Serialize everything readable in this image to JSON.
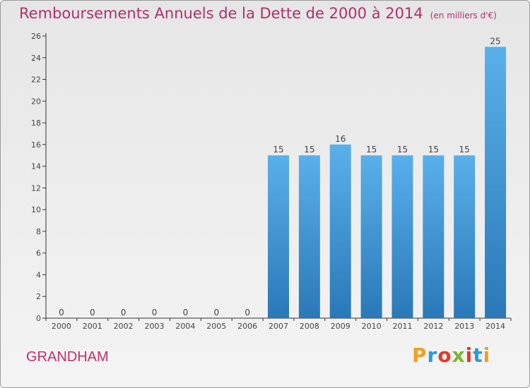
{
  "title": "Remboursements Annuels de la Dette de 2000 à 2014",
  "subtitle": "(en milliers d'€)",
  "town": "GRANDHAM",
  "logo": {
    "letters": [
      "P",
      "r",
      "o",
      "x",
      "i",
      "t",
      "i"
    ],
    "colors": [
      "#f0a020",
      "#2a9ad8",
      "#e03a2a",
      "#7ab830",
      "#e03a2a",
      "#2a9ad8",
      "#f0a020"
    ]
  },
  "colors": {
    "title": "#b0306a",
    "bar_top": "#5ab0ea",
    "bar_bottom": "#2a78b8",
    "axis": "#333333"
  },
  "chart_data": {
    "type": "bar",
    "title": "Remboursements Annuels de la Dette de 2000 à 2014",
    "subtitle": "(en milliers d'€)",
    "categories": [
      "2000",
      "2001",
      "2002",
      "2003",
      "2004",
      "2005",
      "2006",
      "2007",
      "2008",
      "2009",
      "2010",
      "2011",
      "2012",
      "2013",
      "2014"
    ],
    "values": [
      0,
      0,
      0,
      0,
      0,
      0,
      0,
      15,
      15,
      16,
      15,
      15,
      15,
      15,
      25
    ],
    "ylim": [
      0,
      26
    ],
    "yticks": [
      0,
      2,
      4,
      6,
      8,
      10,
      12,
      14,
      16,
      18,
      20,
      22,
      24,
      26
    ],
    "grid": false,
    "legend": "none"
  }
}
